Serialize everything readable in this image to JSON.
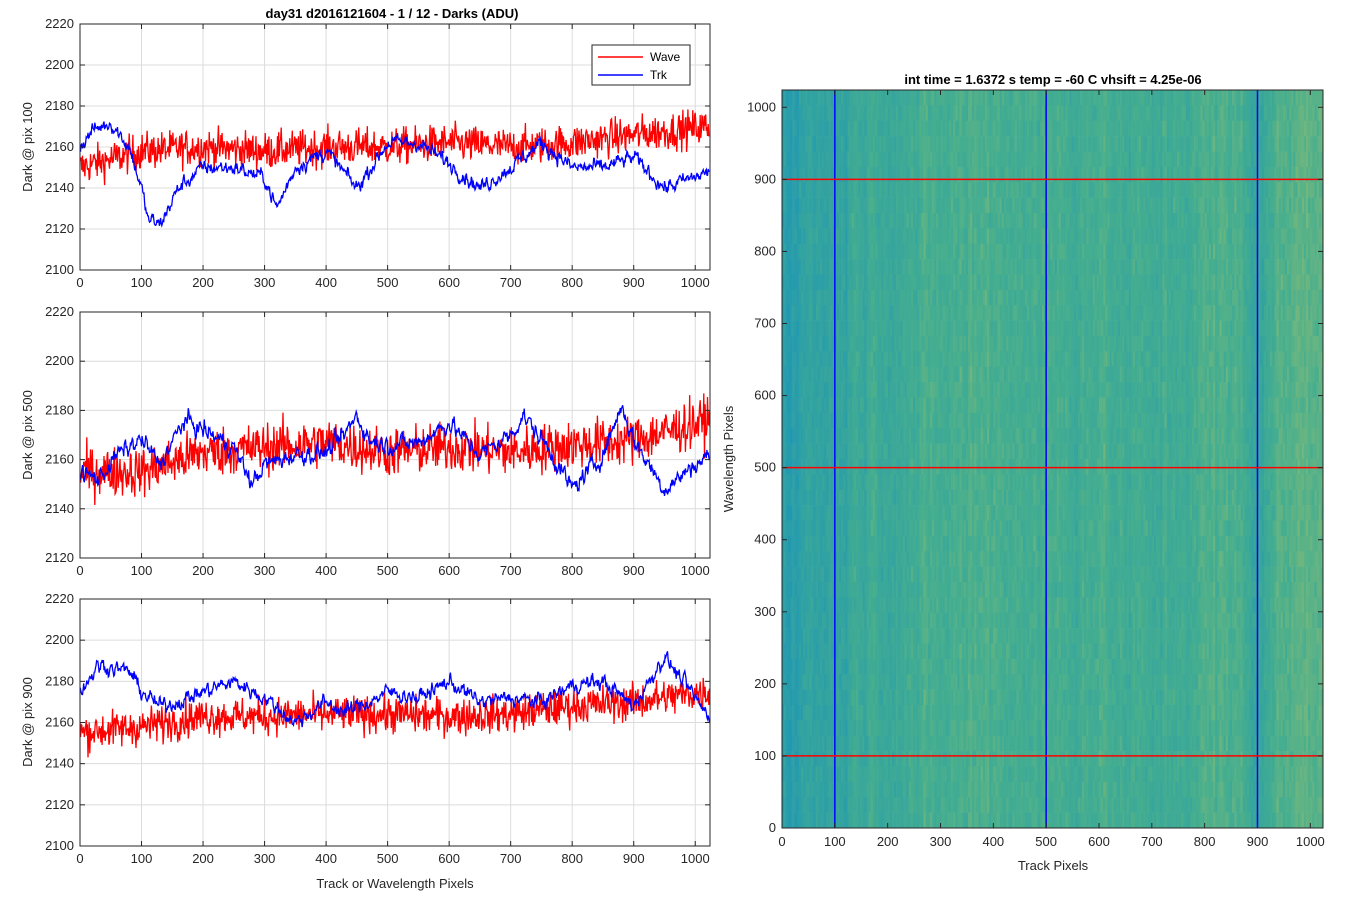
{
  "figure": {
    "suptitle": "day31 d2016121604 - 1 / 12 - Darks (ADU)"
  },
  "colors": {
    "wave": "#ff0000",
    "trk": "#0000ff",
    "grid": "#dcdcdc",
    "axes": "#262626",
    "image_low": "#1a94b8",
    "image_mid": "#45ae8f",
    "image_high": "#b7c462"
  },
  "chart_data": [
    {
      "type": "line",
      "ylabel": "Dark @ pix 100",
      "xlabel": "",
      "xlim": [
        0,
        1024
      ],
      "ylim": [
        2100,
        2220
      ],
      "xticks": [
        0,
        100,
        200,
        300,
        400,
        500,
        600,
        700,
        800,
        900,
        1000
      ],
      "yticks": [
        2100,
        2120,
        2140,
        2160,
        2180,
        2200,
        2220
      ],
      "grid": true,
      "legend": {
        "placement": "top-right",
        "entries": [
          "Wave",
          "Trk"
        ]
      },
      "series": [
        {
          "name": "Wave",
          "color": "#ff0000",
          "n_points": 1024,
          "noise_amplitude": 9,
          "anchors": [
            [
              0,
              2150
            ],
            [
              100,
              2158
            ],
            [
              200,
              2160
            ],
            [
              300,
              2158
            ],
            [
              400,
              2160
            ],
            [
              500,
              2160
            ],
            [
              600,
              2162
            ],
            [
              700,
              2160
            ],
            [
              800,
              2162
            ],
            [
              900,
              2166
            ],
            [
              1024,
              2170
            ]
          ]
        },
        {
          "name": "Trk",
          "color": "#0000ff",
          "n_points": 1024,
          "noise_amplitude": 4,
          "anchors": [
            [
              0,
              2160
            ],
            [
              20,
              2168
            ],
            [
              50,
              2172
            ],
            [
              80,
              2160
            ],
            [
              100,
              2140
            ],
            [
              110,
              2125
            ],
            [
              130,
              2122
            ],
            [
              160,
              2140
            ],
            [
              200,
              2150
            ],
            [
              250,
              2150
            ],
            [
              300,
              2145
            ],
            [
              320,
              2130
            ],
            [
              350,
              2150
            ],
            [
              400,
              2158
            ],
            [
              450,
              2140
            ],
            [
              500,
              2162
            ],
            [
              550,
              2162
            ],
            [
              600,
              2152
            ],
            [
              650,
              2140
            ],
            [
              700,
              2150
            ],
            [
              750,
              2162
            ],
            [
              800,
              2150
            ],
            [
              850,
              2150
            ],
            [
              900,
              2155
            ],
            [
              950,
              2140
            ],
            [
              1024,
              2148
            ]
          ]
        }
      ]
    },
    {
      "type": "line",
      "ylabel": "Dark @ pix 500",
      "xlabel": "",
      "xlim": [
        0,
        1024
      ],
      "ylim": [
        2120,
        2220
      ],
      "xticks": [
        0,
        100,
        200,
        300,
        400,
        500,
        600,
        700,
        800,
        900,
        1000
      ],
      "yticks": [
        2120,
        2140,
        2160,
        2180,
        2200,
        2220
      ],
      "grid": true,
      "series": [
        {
          "name": "Wave",
          "color": "#ff0000",
          "n_points": 1024,
          "noise_amplitude": 10,
          "anchors": [
            [
              0,
              2155
            ],
            [
              100,
              2155
            ],
            [
              200,
              2163
            ],
            [
              300,
              2165
            ],
            [
              400,
              2167
            ],
            [
              500,
              2163
            ],
            [
              600,
              2165
            ],
            [
              700,
              2163
            ],
            [
              800,
              2166
            ],
            [
              900,
              2168
            ],
            [
              1024,
              2176
            ]
          ]
        },
        {
          "name": "Trk",
          "color": "#0000ff",
          "n_points": 1024,
          "noise_amplitude": 4,
          "anchors": [
            [
              0,
              2155
            ],
            [
              30,
              2152
            ],
            [
              60,
              2162
            ],
            [
              100,
              2168
            ],
            [
              130,
              2158
            ],
            [
              170,
              2176
            ],
            [
              200,
              2172
            ],
            [
              250,
              2165
            ],
            [
              280,
              2150
            ],
            [
              300,
              2158
            ],
            [
              350,
              2162
            ],
            [
              400,
              2163
            ],
            [
              430,
              2170
            ],
            [
              450,
              2178
            ],
            [
              470,
              2168
            ],
            [
              500,
              2166
            ],
            [
              550,
              2167
            ],
            [
              600,
              2175
            ],
            [
              650,
              2162
            ],
            [
              700,
              2170
            ],
            [
              720,
              2178
            ],
            [
              760,
              2165
            ],
            [
              800,
              2148
            ],
            [
              850,
              2162
            ],
            [
              880,
              2182
            ],
            [
              900,
              2168
            ],
            [
              950,
              2148
            ],
            [
              1000,
              2158
            ],
            [
              1024,
              2162
            ]
          ]
        }
      ]
    },
    {
      "type": "line",
      "ylabel": "Dark @ pix 900",
      "xlabel": "Track or Wavelength Pixels",
      "xlim": [
        0,
        1024
      ],
      "ylim": [
        2100,
        2220
      ],
      "xticks": [
        0,
        100,
        200,
        300,
        400,
        500,
        600,
        700,
        800,
        900,
        1000
      ],
      "yticks": [
        2100,
        2120,
        2140,
        2160,
        2180,
        2200,
        2220
      ],
      "grid": true,
      "series": [
        {
          "name": "Wave",
          "color": "#ff0000",
          "n_points": 1024,
          "noise_amplitude": 9,
          "anchors": [
            [
              0,
              2155
            ],
            [
              100,
              2158
            ],
            [
              200,
              2163
            ],
            [
              300,
              2163
            ],
            [
              400,
              2164
            ],
            [
              500,
              2164
            ],
            [
              600,
              2163
            ],
            [
              700,
              2164
            ],
            [
              800,
              2168
            ],
            [
              900,
              2170
            ],
            [
              1024,
              2175
            ]
          ]
        },
        {
          "name": "Trk",
          "color": "#0000ff",
          "n_points": 1024,
          "noise_amplitude": 4,
          "anchors": [
            [
              0,
              2175
            ],
            [
              30,
              2188
            ],
            [
              80,
              2185
            ],
            [
              100,
              2175
            ],
            [
              130,
              2168
            ],
            [
              160,
              2170
            ],
            [
              200,
              2175
            ],
            [
              250,
              2180
            ],
            [
              300,
              2172
            ],
            [
              350,
              2160
            ],
            [
              400,
              2170
            ],
            [
              430,
              2165
            ],
            [
              470,
              2170
            ],
            [
              500,
              2175
            ],
            [
              550,
              2172
            ],
            [
              600,
              2180
            ],
            [
              650,
              2170
            ],
            [
              700,
              2172
            ],
            [
              750,
              2170
            ],
            [
              800,
              2178
            ],
            [
              850,
              2180
            ],
            [
              900,
              2168
            ],
            [
              950,
              2192
            ],
            [
              980,
              2180
            ],
            [
              1024,
              2162
            ]
          ]
        }
      ]
    },
    {
      "type": "heatmap",
      "title": "int time = 1.6372 s    temp = -60 C    vhsift = 4.25e-06",
      "xlabel": "Track Pixels",
      "ylabel": "Wavelength Pixels",
      "xlim": [
        0,
        1024
      ],
      "ylim": [
        0,
        1024
      ],
      "xticks": [
        0,
        100,
        200,
        300,
        400,
        500,
        600,
        700,
        800,
        900,
        1000
      ],
      "yticks": [
        0,
        100,
        200,
        300,
        400,
        500,
        600,
        700,
        800,
        900,
        1000
      ],
      "vertical_lines": {
        "x": [
          100,
          500,
          900
        ],
        "color": "#0000ff"
      },
      "horizontal_lines": {
        "y": [
          100,
          500,
          900
        ],
        "color": "#ff0000"
      },
      "column_profile": [
        [
          0,
          0.18
        ],
        [
          60,
          0.3
        ],
        [
          100,
          0.3
        ],
        [
          150,
          0.42
        ],
        [
          200,
          0.44
        ],
        [
          280,
          0.45
        ],
        [
          320,
          0.5
        ],
        [
          400,
          0.52
        ],
        [
          450,
          0.5
        ],
        [
          520,
          0.48
        ],
        [
          600,
          0.5
        ],
        [
          650,
          0.44
        ],
        [
          700,
          0.42
        ],
        [
          760,
          0.48
        ],
        [
          820,
          0.52
        ],
        [
          870,
          0.5
        ],
        [
          900,
          0.35
        ],
        [
          950,
          0.55
        ],
        [
          1000,
          0.62
        ],
        [
          1024,
          0.65
        ]
      ]
    }
  ]
}
